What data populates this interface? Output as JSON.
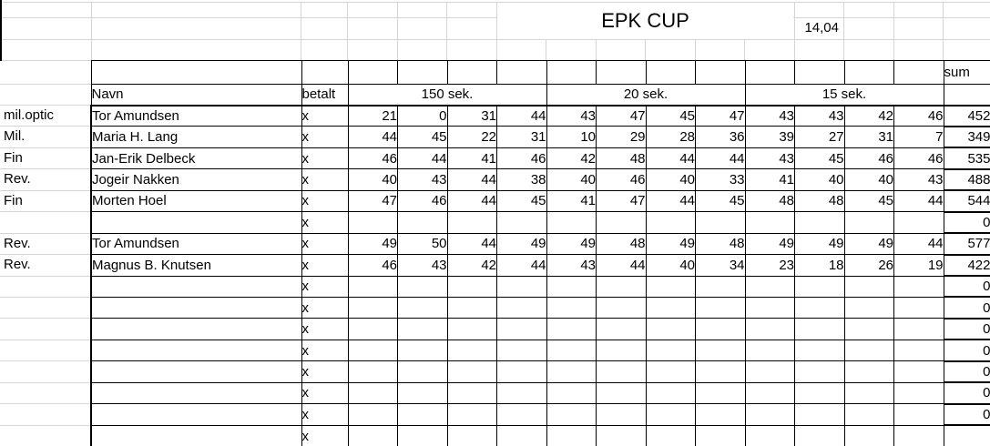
{
  "sheet": {
    "title": "EPK CUP",
    "time": "14,04",
    "headers": {
      "name": "Navn",
      "paid": "betalt",
      "sections": [
        "150 sek.",
        "20 sek.",
        "15 sek."
      ],
      "sum": "sum"
    },
    "rows": [
      {
        "group": "mil.optic",
        "name": "Tor Amundsen",
        "paid": "x",
        "scores": [
          21,
          0,
          31,
          44,
          43,
          47,
          45,
          47,
          43,
          43,
          42,
          46
        ],
        "sum": 452
      },
      {
        "group": "Mil.",
        "name": "Maria H. Lang",
        "paid": "x",
        "scores": [
          44,
          45,
          22,
          31,
          10,
          29,
          28,
          36,
          39,
          27,
          31,
          7
        ],
        "sum": 349
      },
      {
        "group": "Fin",
        "name": "Jan-Erik Delbeck",
        "paid": "x",
        "scores": [
          46,
          44,
          41,
          46,
          42,
          48,
          44,
          44,
          43,
          45,
          46,
          46
        ],
        "sum": 535
      },
      {
        "group": "Rev.",
        "name": "Jogeir Nakken",
        "paid": "x",
        "scores": [
          40,
          43,
          44,
          38,
          40,
          46,
          40,
          33,
          41,
          40,
          40,
          43
        ],
        "sum": 488
      },
      {
        "group": "Fin",
        "name": "Morten Hoel",
        "paid": "x",
        "scores": [
          47,
          46,
          44,
          45,
          41,
          47,
          44,
          45,
          48,
          48,
          45,
          44
        ],
        "sum": 544
      },
      {
        "group": "",
        "name": "",
        "paid": "x",
        "scores": [],
        "sum": 0
      },
      {
        "group": "Rev.",
        "name": "Tor Amundsen",
        "paid": "x",
        "scores": [
          49,
          50,
          44,
          49,
          49,
          48,
          49,
          48,
          49,
          49,
          49,
          44
        ],
        "sum": 577
      },
      {
        "group": "Rev.",
        "name": "Magnus B. Knutsen",
        "paid": "x",
        "scores": [
          46,
          43,
          42,
          44,
          43,
          44,
          40,
          34,
          23,
          18,
          26,
          19
        ],
        "sum": 422
      },
      {
        "group": "",
        "name": "",
        "paid": "x",
        "scores": [],
        "sum": 0
      },
      {
        "group": "",
        "name": "",
        "paid": "x",
        "scores": [],
        "sum": 0
      },
      {
        "group": "",
        "name": "",
        "paid": "x",
        "scores": [],
        "sum": 0
      },
      {
        "group": "",
        "name": "",
        "paid": "x",
        "scores": [],
        "sum": 0
      },
      {
        "group": "",
        "name": "",
        "paid": "x",
        "scores": [],
        "sum": 0
      },
      {
        "group": "",
        "name": "",
        "paid": "x",
        "scores": [],
        "sum": 0
      },
      {
        "group": "",
        "name": "",
        "paid": "x",
        "scores": [],
        "sum": 0
      },
      {
        "group": "",
        "name": "",
        "paid": "x",
        "scores": [],
        "sum": ""
      }
    ],
    "colors": {
      "background": "#ffffff",
      "text": "#000000",
      "table_border": "#000000",
      "gridline": "#d4d4d4"
    }
  }
}
